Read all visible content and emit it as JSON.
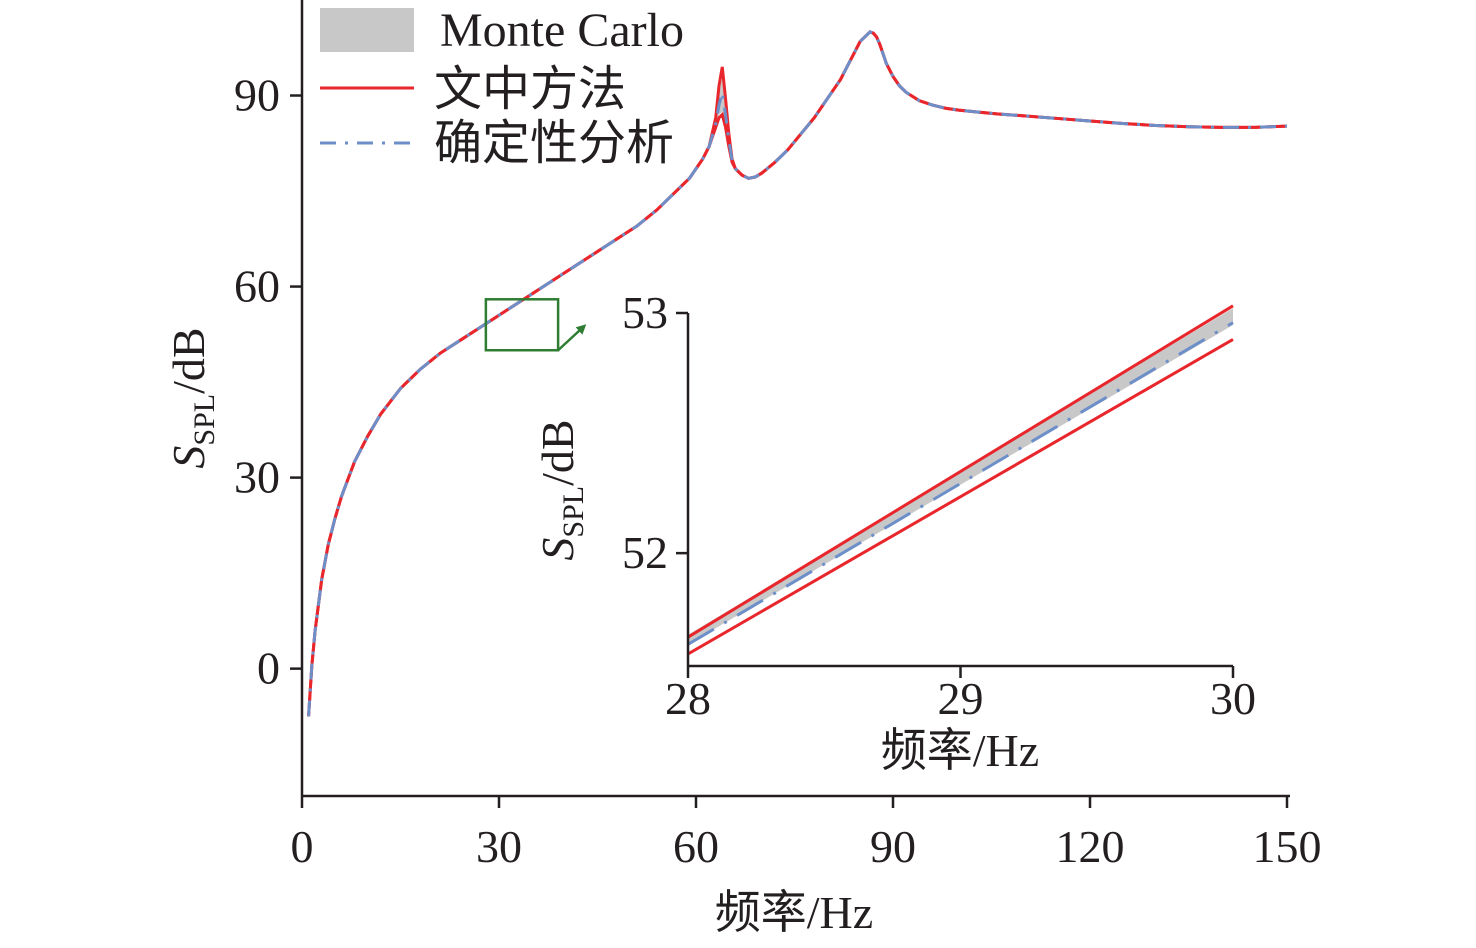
{
  "legend": [
    {
      "key": "mc",
      "label": "Monte Carlo",
      "color": "#c8c8c8"
    },
    {
      "key": "method",
      "label": "文中方法",
      "color": "#e8262b"
    },
    {
      "key": "det",
      "label": "确定性分析",
      "color": "#6d8fc9"
    }
  ],
  "chart_data": [
    {
      "type": "line",
      "xlabel": "频率/Hz",
      "ylabel_main": "S",
      "ylabel_sub": "SPL",
      "ylabel_unit": "/dB",
      "xlim": [
        0,
        150
      ],
      "ylim": [
        -20,
        105
      ],
      "xticks": [
        0,
        30,
        60,
        90,
        120,
        150
      ],
      "yticks": [
        0,
        30,
        60,
        90
      ],
      "x": [
        1,
        1.5,
        2,
        3,
        4,
        5,
        6,
        8,
        10,
        12,
        15,
        18,
        21,
        24,
        27,
        30,
        33,
        36,
        39,
        42,
        45,
        48,
        51,
        54,
        57,
        59,
        60,
        61,
        62,
        63,
        63.5,
        64,
        64.5,
        65,
        65.5,
        66,
        67,
        68,
        69,
        70,
        72,
        74,
        76,
        78,
        80,
        82,
        83,
        84,
        85,
        86,
        86.5,
        87,
        87.5,
        88,
        88.5,
        89,
        90,
        91,
        92,
        94,
        96,
        98,
        100,
        103,
        106,
        110,
        115,
        120,
        125,
        130,
        135,
        140,
        145,
        150
      ],
      "series": [
        {
          "name": "Monte Carlo",
          "lower": [
            -7.5,
            0.5,
            6,
            14,
            19.5,
            23.5,
            27,
            32.5,
            36.5,
            40,
            44,
            47,
            49.5,
            51.5,
            53.5,
            55.5,
            57.5,
            59.5,
            61.5,
            63.5,
            65.5,
            67.5,
            69.5,
            72,
            75,
            77,
            78.5,
            80,
            82,
            85,
            87,
            87.5,
            85,
            82,
            79.5,
            78.5,
            77.5,
            77,
            77.2,
            77.8,
            79.5,
            81.5,
            84,
            86.5,
            89.5,
            92.5,
            94.5,
            96.5,
            98.5,
            99.5,
            100,
            99.8,
            99.2,
            98,
            96.5,
            95,
            93,
            91.5,
            90.5,
            89.2,
            88.5,
            88,
            87.7,
            87.4,
            87.1,
            86.8,
            86.4,
            86,
            85.6,
            85.3,
            85.1,
            85,
            85,
            85.2
          ],
          "upper": [
            -7.5,
            0.5,
            6,
            14,
            19.5,
            23.5,
            27,
            32.5,
            36.5,
            40,
            44,
            47,
            49.5,
            51.5,
            53.5,
            55.5,
            57.5,
            59.5,
            61.5,
            63.5,
            65.5,
            67.5,
            69.5,
            72,
            75,
            77,
            78.5,
            80,
            82,
            86,
            90,
            93,
            89,
            84,
            80,
            78.5,
            77.5,
            77,
            77.2,
            77.8,
            79.5,
            81.5,
            84,
            86.5,
            89.5,
            92.5,
            94.5,
            96.5,
            98.5,
            99.5,
            100,
            99.8,
            99.2,
            98,
            96.5,
            95,
            93,
            91.5,
            90.5,
            89.2,
            88.5,
            88,
            87.7,
            87.4,
            87.1,
            86.8,
            86.4,
            86,
            85.6,
            85.3,
            85.1,
            85,
            85,
            85.2
          ]
        },
        {
          "name": "文中方法",
          "lower": [
            -7.5,
            0.5,
            6,
            14,
            19.5,
            23.5,
            27,
            32.5,
            36.5,
            40,
            44,
            47,
            49.5,
            51.5,
            53.5,
            55.5,
            57.5,
            59.5,
            61.5,
            63.5,
            65.5,
            67.5,
            69.5,
            72,
            75,
            77,
            78.5,
            80,
            82,
            85,
            86.5,
            87,
            85,
            82,
            79.5,
            78.5,
            77.5,
            77,
            77.2,
            77.8,
            79.5,
            81.5,
            84,
            86.5,
            89.5,
            92.5,
            94.5,
            96.5,
            98.5,
            99.5,
            100,
            99.8,
            99.2,
            98,
            96.5,
            95,
            93,
            91.5,
            90.5,
            89.2,
            88.5,
            88,
            87.7,
            87.4,
            87.1,
            86.8,
            86.4,
            86,
            85.6,
            85.3,
            85.1,
            85,
            85,
            85.2
          ],
          "upper": [
            -7.5,
            0.5,
            6,
            14,
            19.5,
            23.5,
            27,
            32.5,
            36.5,
            40,
            44,
            47,
            49.5,
            51.5,
            53.5,
            55.5,
            57.5,
            59.5,
            61.5,
            63.5,
            65.5,
            67.5,
            69.5,
            72,
            75,
            77,
            78.5,
            80,
            82,
            86.5,
            91.5,
            94.5,
            89.5,
            84,
            80,
            78.5,
            77.5,
            77,
            77.2,
            77.8,
            79.5,
            81.5,
            84,
            86.5,
            89.5,
            92.5,
            94.5,
            96.5,
            98.5,
            99.5,
            100,
            99.8,
            99.2,
            98,
            96.5,
            95,
            93,
            91.5,
            90.5,
            89.2,
            88.5,
            88,
            87.7,
            87.4,
            87.1,
            86.8,
            86.4,
            86,
            85.6,
            85.3,
            85.1,
            85,
            85,
            85.2
          ]
        },
        {
          "name": "确定性分析",
          "values": [
            -7.5,
            0.5,
            6,
            14,
            19.5,
            23.5,
            27,
            32.5,
            36.5,
            40,
            44,
            47,
            49.5,
            51.5,
            53.5,
            55.5,
            57.5,
            59.5,
            61.5,
            63.5,
            65.5,
            67.5,
            69.5,
            72,
            75,
            77,
            78.5,
            80,
            82,
            85.5,
            88.5,
            90.5,
            87,
            83,
            79.8,
            78.5,
            77.5,
            77,
            77.2,
            77.8,
            79.5,
            81.5,
            84,
            86.5,
            89.5,
            92.5,
            94.5,
            96.5,
            98.5,
            99.5,
            100,
            99.8,
            99.2,
            98,
            96.5,
            95,
            93,
            91.5,
            90.5,
            89.2,
            88.5,
            88,
            87.7,
            87.4,
            87.1,
            86.8,
            86.4,
            86,
            85.6,
            85.3,
            85.1,
            85,
            85,
            85.2
          ]
        }
      ],
      "zoom_box": {
        "x": [
          28,
          39
        ],
        "y": [
          50,
          58
        ]
      }
    },
    {
      "type": "line",
      "xlabel": "频率/Hz",
      "ylabel_main": "S",
      "ylabel_sub": "SPL",
      "ylabel_unit": "/dB",
      "xlim": [
        28,
        30
      ],
      "ylim": [
        51.53,
        53
      ],
      "xticks": [
        28,
        29,
        30
      ],
      "yticks": [
        52,
        53
      ],
      "x": [
        28,
        30
      ],
      "series": [
        {
          "name": "Monte Carlo",
          "lower": [
            51.62,
            52.95
          ],
          "upper": [
            51.66,
            53.02
          ]
        },
        {
          "name": "文中方法",
          "lower": [
            51.58,
            52.89
          ],
          "upper": [
            51.65,
            53.03
          ]
        },
        {
          "name": "确定性分析",
          "values": [
            51.62,
            52.96
          ]
        }
      ]
    }
  ]
}
